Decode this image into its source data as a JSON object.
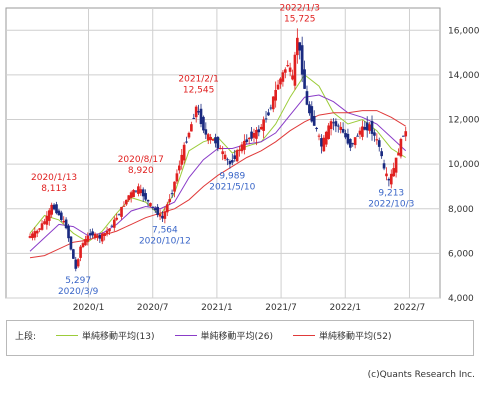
{
  "chart_data": {
    "type": "candlestick",
    "y_ticks": [
      "16,000",
      "14,000",
      "12,000",
      "10,000",
      "8,000",
      "6,000",
      "4,000"
    ],
    "ylim": [
      4000,
      17000
    ],
    "x_ticks": [
      "2020/1",
      "2020/7",
      "2021/1",
      "2021/7",
      "2022/1",
      "2022/7"
    ],
    "xlim": [
      "2019/10",
      "2022/12"
    ],
    "grid": true,
    "series": [
      {
        "name": "単純移動平均(13)",
        "color": "#9ccc3a",
        "values": [
          [
            0,
            6900
          ],
          [
            3,
            7700
          ],
          [
            6,
            7500
          ],
          [
            9,
            6900
          ],
          [
            12,
            6500
          ],
          [
            15,
            7000
          ],
          [
            18,
            7800
          ],
          [
            21,
            8500
          ],
          [
            24,
            8300
          ],
          [
            27,
            7700
          ],
          [
            30,
            8700
          ],
          [
            33,
            10600
          ],
          [
            36,
            11000
          ],
          [
            39,
            11200
          ],
          [
            42,
            10500
          ],
          [
            45,
            10800
          ],
          [
            48,
            11000
          ],
          [
            51,
            11800
          ],
          [
            54,
            13000
          ],
          [
            57,
            14000
          ],
          [
            60,
            13500
          ],
          [
            63,
            12300
          ],
          [
            66,
            11800
          ],
          [
            69,
            12000
          ],
          [
            72,
            11500
          ],
          [
            75,
            10700
          ],
          [
            78,
            10300
          ]
        ]
      },
      {
        "name": "単純移動平均(26)",
        "color": "#8a3cc8",
        "values": [
          [
            0,
            6100
          ],
          [
            3,
            6700
          ],
          [
            6,
            7300
          ],
          [
            9,
            7200
          ],
          [
            12,
            6800
          ],
          [
            15,
            6900
          ],
          [
            18,
            7300
          ],
          [
            21,
            7900
          ],
          [
            24,
            8100
          ],
          [
            27,
            8000
          ],
          [
            30,
            8300
          ],
          [
            33,
            9400
          ],
          [
            36,
            10200
          ],
          [
            39,
            10700
          ],
          [
            42,
            10700
          ],
          [
            45,
            10900
          ],
          [
            48,
            11000
          ],
          [
            51,
            11400
          ],
          [
            54,
            12200
          ],
          [
            57,
            13000
          ],
          [
            60,
            13100
          ],
          [
            63,
            12800
          ],
          [
            66,
            12300
          ],
          [
            69,
            12100
          ],
          [
            72,
            11800
          ],
          [
            75,
            11200
          ],
          [
            78,
            10600
          ]
        ]
      },
      {
        "name": "単純移動平均(52)",
        "color": "#e03a3a",
        "values": [
          [
            0,
            5800
          ],
          [
            3,
            5900
          ],
          [
            6,
            6200
          ],
          [
            9,
            6500
          ],
          [
            12,
            6600
          ],
          [
            15,
            6800
          ],
          [
            18,
            7000
          ],
          [
            21,
            7300
          ],
          [
            24,
            7600
          ],
          [
            27,
            7800
          ],
          [
            30,
            8000
          ],
          [
            33,
            8400
          ],
          [
            36,
            9000
          ],
          [
            39,
            9500
          ],
          [
            42,
            9900
          ],
          [
            45,
            10300
          ],
          [
            48,
            10600
          ],
          [
            51,
            11000
          ],
          [
            54,
            11500
          ],
          [
            57,
            11900
          ],
          [
            60,
            12200
          ],
          [
            63,
            12300
          ],
          [
            66,
            12300
          ],
          [
            69,
            12400
          ],
          [
            72,
            12400
          ],
          [
            75,
            12100
          ],
          [
            78,
            11700
          ]
        ]
      }
    ],
    "price_path": [
      [
        0,
        6700
      ],
      [
        2,
        7000
      ],
      [
        4,
        7600
      ],
      [
        5,
        8113
      ],
      [
        6,
        7900
      ],
      [
        8,
        7200
      ],
      [
        9,
        6200
      ],
      [
        10,
        5297
      ],
      [
        11,
        6300
      ],
      [
        13,
        6900
      ],
      [
        15,
        6700
      ],
      [
        17,
        7100
      ],
      [
        19,
        7800
      ],
      [
        21,
        8600
      ],
      [
        23,
        8920
      ],
      [
        25,
        8300
      ],
      [
        27,
        7800
      ],
      [
        28,
        7564
      ],
      [
        30,
        8800
      ],
      [
        32,
        10400
      ],
      [
        34,
        11800
      ],
      [
        35,
        12545
      ],
      [
        37,
        11300
      ],
      [
        39,
        11000
      ],
      [
        41,
        10300
      ],
      [
        42,
        9989
      ],
      [
        44,
        10700
      ],
      [
        46,
        11200
      ],
      [
        48,
        11500
      ],
      [
        50,
        12300
      ],
      [
        52,
        13600
      ],
      [
        54,
        14500
      ],
      [
        55,
        13800
      ],
      [
        56,
        15725
      ],
      [
        57,
        14200
      ],
      [
        58,
        12600
      ],
      [
        60,
        11500
      ],
      [
        61,
        10800
      ],
      [
        63,
        11900
      ],
      [
        65,
        11600
      ],
      [
        67,
        10800
      ],
      [
        69,
        11500
      ],
      [
        71,
        11700
      ],
      [
        73,
        10800
      ],
      [
        74,
        9700
      ],
      [
        75,
        9213
      ],
      [
        76,
        9800
      ],
      [
        77,
        10600
      ],
      [
        78,
        11400
      ]
    ],
    "annotations": [
      {
        "date": "2020/1/13",
        "value": "8,113",
        "kind": "high",
        "week": 5,
        "price": 8113
      },
      {
        "date": "2020/3/9",
        "value": "5,297",
        "kind": "low",
        "week": 10,
        "price": 5297
      },
      {
        "date": "2020/8/17",
        "value": "8,920",
        "kind": "high",
        "week": 23,
        "price": 8920
      },
      {
        "date": "2020/10/12",
        "value": "7,564",
        "kind": "low",
        "week": 28,
        "price": 7564
      },
      {
        "date": "2021/2/1",
        "value": "12,545",
        "kind": "high",
        "week": 35,
        "price": 12545
      },
      {
        "date": "2021/5/10",
        "value": "9,989",
        "kind": "low",
        "week": 42,
        "price": 9989
      },
      {
        "date": "2022/1/3",
        "value": "15,725",
        "kind": "high",
        "week": 56,
        "price": 15725
      },
      {
        "date": "2022/10/3",
        "value": "9,213",
        "kind": "low",
        "week": 75,
        "price": 9213
      }
    ]
  },
  "legend": {
    "prefix": "上段:",
    "items": [
      {
        "label": "単純移動平均(13)",
        "color": "#9ccc3a"
      },
      {
        "label": "単純移動平均(26)",
        "color": "#8a3cc8"
      },
      {
        "label": "単純移動平均(52)",
        "color": "#e03a3a"
      }
    ]
  },
  "colors": {
    "up": "#e02020",
    "down": "#1a2a80",
    "high_label": "#e02020",
    "low_label": "#3a66c8",
    "grid": "#cfcfcf"
  },
  "copyright": "(c)Quants Research Inc."
}
